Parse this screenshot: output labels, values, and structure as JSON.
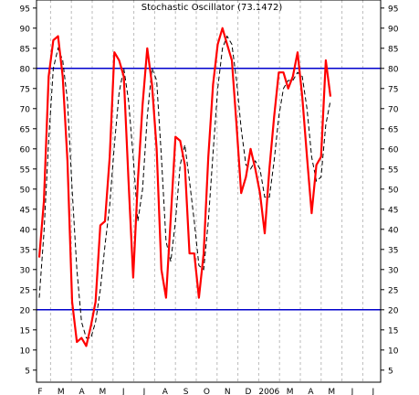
{
  "chart_data": {
    "type": "line",
    "title": "Stochastic Oscillator (73.1472)",
    "xlabel": "",
    "ylabel": "",
    "ylim": [
      2,
      97
    ],
    "yticks": [
      5,
      10,
      15,
      20,
      25,
      30,
      35,
      40,
      45,
      50,
      55,
      60,
      65,
      70,
      75,
      80,
      85,
      90,
      95
    ],
    "x_tick_labels": [
      "F",
      "M",
      "A",
      "M",
      "J",
      "J",
      "A",
      "S",
      "O",
      "N",
      "D",
      "2006",
      "M",
      "A",
      "M",
      "J",
      "J"
    ],
    "grid": "vertical dashed",
    "reference_lines": [
      80,
      20
    ],
    "colors": {
      "k_line": "#ff0000",
      "d_line": "#000000",
      "reference": "#0000cc",
      "grid": "#bbbbbb"
    },
    "series": [
      {
        "style": "solid",
        "values": [
          33,
          47,
          78,
          87,
          88,
          78,
          57,
          22,
          12,
          13,
          11,
          16,
          22,
          41,
          42,
          58,
          84,
          82,
          78,
          52,
          28,
          52,
          71,
          85,
          76,
          60,
          30,
          23,
          43,
          63,
          62,
          56,
          34,
          34,
          23,
          34,
          58,
          76,
          86,
          90,
          86,
          82,
          66,
          49,
          53,
          60,
          55,
          49,
          39,
          55,
          68,
          79,
          79,
          75,
          78,
          84,
          73,
          58,
          44,
          56,
          58,
          82,
          73
        ]
      },
      {
        "style": "dashed",
        "values": [
          23,
          39,
          62,
          80,
          85,
          82,
          72,
          50,
          30,
          17,
          13,
          13,
          17,
          25,
          36,
          46,
          61,
          74,
          80,
          72,
          58,
          42,
          50,
          68,
          80,
          77,
          58,
          37,
          32,
          42,
          56,
          61,
          52,
          42,
          31,
          30,
          42,
          59,
          75,
          85,
          88,
          86,
          77,
          65,
          56,
          55,
          57,
          55,
          48,
          48,
          57,
          68,
          75,
          77,
          77,
          79,
          78,
          70,
          58,
          52,
          53,
          66,
          72
        ]
      }
    ]
  }
}
